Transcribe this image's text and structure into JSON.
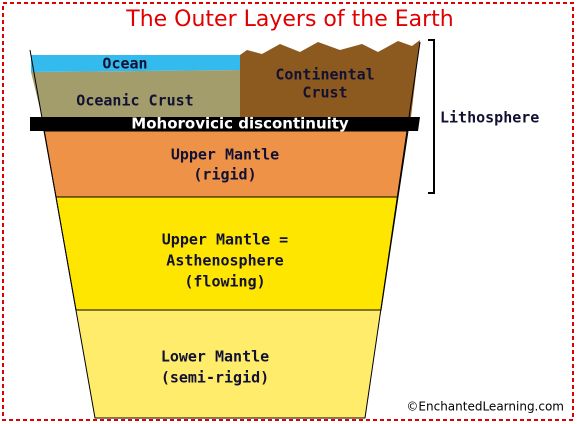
{
  "title": "The Outer Layers of the Earth",
  "layers": [
    {
      "lines": [
        "Ocean"
      ]
    },
    {
      "lines": [
        "Oceanic Crust"
      ]
    },
    {
      "lines": [
        "Continental",
        "Crust"
      ]
    },
    {
      "lines": [
        "Mohorovicic discontinuity"
      ]
    },
    {
      "lines": [
        "Upper Mantle",
        "(rigid)"
      ]
    },
    {
      "lines": [
        "Upper Mantle =",
        "Asthenosphere",
        "(flowing)"
      ]
    },
    {
      "lines": [
        "Lower Mantle",
        "(semi-rigid)"
      ]
    }
  ],
  "bracket_label": "Lithosphere",
  "credit": "©EnchantedLearning.com"
}
